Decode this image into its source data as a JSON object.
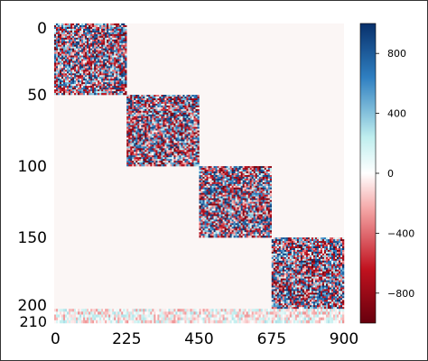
{
  "chart_data": {
    "type": "heatmap",
    "title": "",
    "xlabel": "",
    "ylabel": "",
    "x_ticks": [
      0,
      225,
      450,
      675,
      900
    ],
    "y_ticks": [
      0,
      50,
      100,
      150,
      200,
      210
    ],
    "xlim": [
      0,
      900
    ],
    "ylim": [
      0,
      210
    ],
    "y_axis_inverted": true,
    "blocks": [
      {
        "rows": [
          0,
          50
        ],
        "cols": [
          0,
          225
        ],
        "value_range": [
          -1000,
          1000
        ]
      },
      {
        "rows": [
          50,
          100
        ],
        "cols": [
          225,
          450
        ],
        "value_range": [
          -1000,
          1000
        ]
      },
      {
        "rows": [
          100,
          150
        ],
        "cols": [
          450,
          675
        ],
        "value_range": [
          -1000,
          1000
        ]
      },
      {
        "rows": [
          150,
          200
        ],
        "cols": [
          675,
          900
        ],
        "value_range": [
          -1000,
          1000
        ]
      }
    ],
    "bottom_band": {
      "rows": [
        200,
        210
      ],
      "cols": [
        0,
        900
      ],
      "value_range": [
        -300,
        300
      ]
    },
    "background_value": 0,
    "colorbar": {
      "ticks": [
        800,
        400,
        0,
        -400,
        -800
      ],
      "tick_labels": [
        "800",
        "400",
        "0",
        "−400",
        "−800"
      ],
      "range": [
        -1000,
        1000
      ],
      "colors": [
        "#67000d",
        "#c1121f",
        "#f4a6a6",
        "#ffffff",
        "#bfeeee",
        "#2f7fc1",
        "#08306b"
      ]
    }
  }
}
